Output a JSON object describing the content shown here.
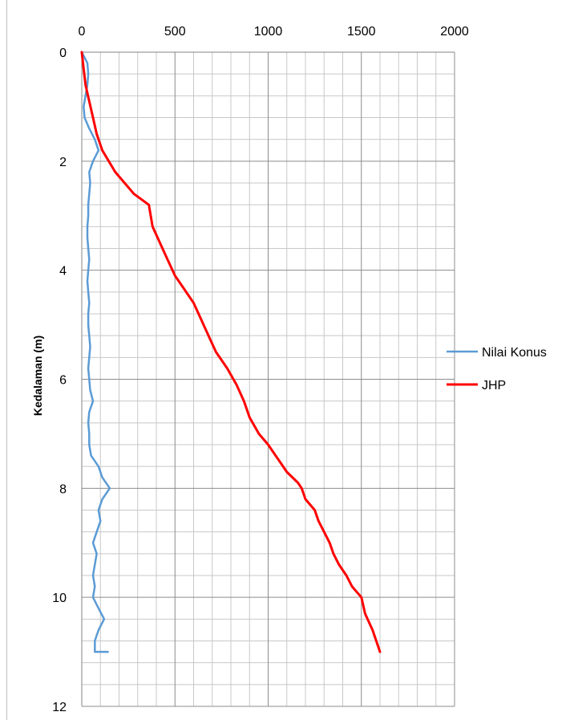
{
  "chart_data": {
    "type": "line",
    "title": "",
    "xlabel": "",
    "ylabel": "Kedalaman (m)",
    "xlim": [
      0,
      2000
    ],
    "ylim": [
      0,
      12
    ],
    "y_inverted": true,
    "x_axis_position": "top",
    "x_ticks": [
      0,
      500,
      1000,
      1500,
      2000
    ],
    "y_ticks": [
      0,
      2,
      4,
      6,
      8,
      10,
      12
    ],
    "x_tick_labels": [
      "0",
      "500",
      "1000",
      "1500",
      "2000"
    ],
    "y_tick_labels": [
      "0",
      "2",
      "4",
      "6",
      "8",
      "10",
      "12"
    ],
    "grid": true,
    "legend_position": "right",
    "series": [
      {
        "name": "Nilai Konus",
        "color": "#5b9bd5",
        "x": [
          0,
          30,
          35,
          30,
          20,
          10,
          15,
          40,
          70,
          90,
          60,
          40,
          45,
          40,
          35,
          35,
          30,
          30,
          35,
          40,
          35,
          30,
          35,
          40,
          35,
          35,
          40,
          45,
          40,
          35,
          40,
          45,
          60,
          40,
          35,
          40,
          40,
          50,
          90,
          110,
          150,
          110,
          90,
          100,
          80,
          60,
          80,
          70,
          60,
          70,
          60,
          90,
          120,
          90,
          70,
          70,
          80,
          110,
          130,
          110,
          130,
          140,
          100
        ],
        "y": [
          0,
          0.2,
          0.4,
          0.6,
          0.8,
          1.0,
          1.2,
          1.4,
          1.6,
          1.8,
          2.0,
          2.2,
          2.4,
          2.6,
          2.8,
          3.0,
          3.2,
          3.4,
          3.6,
          3.8,
          4.0,
          4.2,
          4.4,
          4.6,
          4.8,
          5.0,
          5.2,
          5.4,
          5.6,
          5.8,
          6.0,
          6.2,
          6.4,
          6.6,
          6.8,
          7.0,
          7.2,
          7.4,
          7.6,
          7.8,
          8.0,
          8.2,
          8.4,
          8.6,
          8.8,
          9.0,
          9.2,
          9.4,
          9.6,
          9.8,
          10.0,
          10.2,
          10.4,
          10.6,
          10.8,
          11.0,
          11.0,
          11.0,
          11.0,
          11.0,
          11.0,
          11.0,
          11.0
        ]
      },
      {
        "name": "JHP",
        "color": "#ff0000",
        "x": [
          0,
          10,
          20,
          40,
          60,
          80,
          110,
          180,
          280,
          360,
          380,
          420,
          460,
          500,
          540,
          600,
          640,
          680,
          720,
          780,
          830,
          870,
          900,
          950,
          1000,
          1040,
          1060,
          1100,
          1160,
          1180,
          1200,
          1250,
          1270,
          1300,
          1330,
          1350,
          1380,
          1420,
          1450,
          1500,
          1520,
          1560,
          1600
        ],
        "y": [
          0,
          0.3,
          0.6,
          0.9,
          1.2,
          1.5,
          1.8,
          2.2,
          2.6,
          2.8,
          3.2,
          3.5,
          3.8,
          4.1,
          4.3,
          4.6,
          4.9,
          5.2,
          5.5,
          5.8,
          6.1,
          6.4,
          6.7,
          7.0,
          7.2,
          7.4,
          7.5,
          7.7,
          7.9,
          8.0,
          8.2,
          8.4,
          8.6,
          8.8,
          9.0,
          9.2,
          9.4,
          9.6,
          9.8,
          10.0,
          10.3,
          10.6,
          11.0
        ]
      }
    ]
  }
}
